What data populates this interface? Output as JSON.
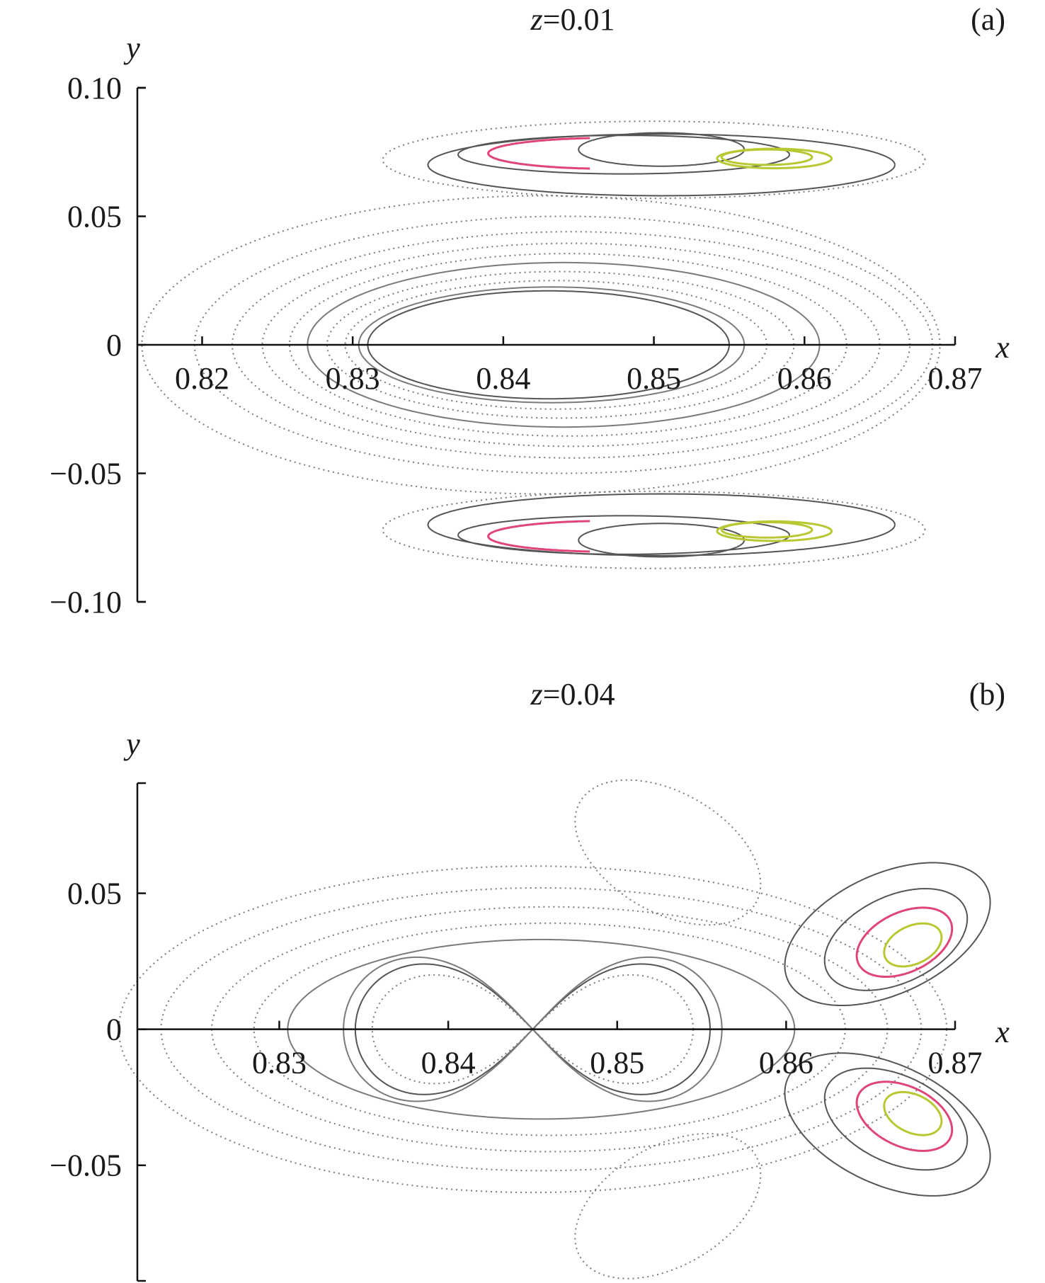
{
  "chart_data": [
    {
      "type": "scatter",
      "title": "z=0.01",
      "title_var": "z",
      "title_value": "=0.01",
      "panel": "(a)",
      "xlabel": "x",
      "ylabel": "y",
      "xlim": [
        0.8157,
        0.87
      ],
      "ylim": [
        -0.1,
        0.1
      ],
      "xticks": [
        "0.82",
        "0.83",
        "0.84",
        "0.85",
        "0.86",
        "0.87"
      ],
      "xtick_values": [
        0.82,
        0.83,
        0.84,
        0.85,
        0.86,
        0.87
      ],
      "yticks": [
        "0.10",
        "0.05",
        "0",
        "−0.05",
        "−0.10"
      ],
      "ytick_values": [
        0.1,
        0.05,
        0,
        -0.05,
        -0.1
      ],
      "grid": false,
      "colors": {
        "gray": "#7a7a7a",
        "dark": "#555555",
        "pink": "#e0457a",
        "yellow": "#b8c832",
        "orange": "#f08a30",
        "red": "#e03030"
      },
      "curves": [
        {
          "shape": "ellipse",
          "cx": 0.843,
          "cy": 0,
          "rx": 0.012,
          "ry": 0.021,
          "color": "dark",
          "style": "solid"
        },
        {
          "shape": "ellipse",
          "cx": 0.8432,
          "cy": 0,
          "rx": 0.0128,
          "ry": 0.0225,
          "color": "gray",
          "style": "solid"
        },
        {
          "shape": "ellipse",
          "cx": 0.8435,
          "cy": 0,
          "rx": 0.014,
          "ry": 0.025,
          "color": "gray",
          "style": "dotted"
        },
        {
          "shape": "ellipse",
          "cx": 0.8438,
          "cy": 0,
          "rx": 0.0155,
          "ry": 0.0285,
          "color": "gray",
          "style": "dotted"
        },
        {
          "shape": "ellipse",
          "cx": 0.844,
          "cy": 0,
          "rx": 0.017,
          "ry": 0.032,
          "color": "gray",
          "style": "solid"
        },
        {
          "shape": "ellipse",
          "cx": 0.8443,
          "cy": 0,
          "rx": 0.0185,
          "ry": 0.0355,
          "color": "gray",
          "style": "dotted"
        },
        {
          "shape": "ellipse",
          "cx": 0.8445,
          "cy": 0,
          "rx": 0.0205,
          "ry": 0.0395,
          "color": "gray",
          "style": "dotted"
        },
        {
          "shape": "ellipse",
          "cx": 0.8445,
          "cy": 0,
          "rx": 0.0225,
          "ry": 0.044,
          "color": "gray",
          "style": "dotted"
        },
        {
          "shape": "ellipse",
          "cx": 0.844,
          "cy": 0,
          "rx": 0.0245,
          "ry": 0.05,
          "color": "gray",
          "style": "dotted"
        },
        {
          "shape": "ellipse",
          "cx": 0.8425,
          "cy": 0,
          "rx": 0.0265,
          "ry": 0.058,
          "color": "gray",
          "style": "dotted"
        },
        {
          "shape": "ellipse",
          "cx": 0.85,
          "cy": 0.072,
          "rx": 0.018,
          "ry": 0.015,
          "color": "gray",
          "style": "dotted"
        },
        {
          "shape": "ellipse",
          "cx": 0.8505,
          "cy": 0.07,
          "rx": 0.0155,
          "ry": 0.012,
          "color": "dark",
          "style": "solid"
        },
        {
          "shape": "ellipse",
          "cx": 0.848,
          "cy": 0.074,
          "rx": 0.011,
          "ry": 0.0075,
          "color": "dark",
          "style": "solid"
        },
        {
          "shape": "ellipse",
          "cx": 0.8505,
          "cy": 0.076,
          "rx": 0.0055,
          "ry": 0.0065,
          "color": "dark",
          "style": "solid"
        },
        {
          "shape": "ellipse",
          "cx": 0.847,
          "cy": 0.0745,
          "rx": 0.008,
          "ry": 0.006,
          "color": "pink",
          "style": "partial"
        },
        {
          "shape": "ellipse",
          "cx": 0.8575,
          "cy": 0.073,
          "rx": 0.003,
          "ry": 0.003,
          "color": "yellow",
          "style": "solid"
        },
        {
          "shape": "ellipse",
          "cx": 0.858,
          "cy": 0.0725,
          "rx": 0.0038,
          "ry": 0.0038,
          "color": "yellow",
          "style": "solid"
        },
        {
          "shape": "ellipse",
          "cx": 0.85,
          "cy": -0.072,
          "rx": 0.018,
          "ry": 0.015,
          "color": "gray",
          "style": "dotted"
        },
        {
          "shape": "ellipse",
          "cx": 0.8505,
          "cy": -0.07,
          "rx": 0.0155,
          "ry": 0.012,
          "color": "dark",
          "style": "solid"
        },
        {
          "shape": "ellipse",
          "cx": 0.848,
          "cy": -0.074,
          "rx": 0.011,
          "ry": 0.0075,
          "color": "dark",
          "style": "solid"
        },
        {
          "shape": "ellipse",
          "cx": 0.8505,
          "cy": -0.076,
          "rx": 0.0055,
          "ry": 0.0065,
          "color": "dark",
          "style": "solid"
        },
        {
          "shape": "ellipse",
          "cx": 0.847,
          "cy": -0.0745,
          "rx": 0.008,
          "ry": 0.006,
          "color": "pink",
          "style": "partial"
        },
        {
          "shape": "ellipse",
          "cx": 0.8575,
          "cy": -0.072,
          "rx": 0.003,
          "ry": 0.003,
          "color": "yellow",
          "style": "solid"
        },
        {
          "shape": "ellipse",
          "cx": 0.858,
          "cy": -0.0725,
          "rx": 0.0038,
          "ry": 0.0038,
          "color": "yellow",
          "style": "solid"
        }
      ]
    },
    {
      "type": "scatter",
      "title": "z=0.04",
      "title_var": "z",
      "title_value": "=0.04",
      "panel": "(b)",
      "xlabel": "x",
      "ylabel": "y",
      "xlim": [
        0.8216,
        0.87
      ],
      "ylim": [
        -0.0925,
        0.0905
      ],
      "xticks": [
        "0.83",
        "0.84",
        "0.85",
        "0.86",
        "0.87"
      ],
      "xtick_values": [
        0.83,
        0.84,
        0.85,
        0.86,
        0.87
      ],
      "yticks": [
        "0.05",
        "0",
        "−0.05"
      ],
      "ytick_values": [
        0.05,
        0,
        -0.05
      ],
      "grid": false,
      "colors": {
        "gray": "#7a7a7a",
        "dark": "#555555",
        "pink": "#e0457a",
        "yellow": "#b8c832",
        "orange": "#f08a30",
        "red": "#e03030"
      },
      "curves": [
        {
          "shape": "lemniscate",
          "cx": 0.845,
          "cy": 0,
          "rx": 0.0105,
          "ry": 0.024,
          "color": "dark",
          "style": "solid"
        },
        {
          "shape": "lemniscate",
          "cx": 0.845,
          "cy": 0,
          "rx": 0.0112,
          "ry": 0.0265,
          "color": "gray",
          "style": "solid"
        },
        {
          "shape": "lemniscate",
          "cx": 0.845,
          "cy": 0,
          "rx": 0.0095,
          "ry": 0.02,
          "color": "gray",
          "style": "dotted"
        },
        {
          "shape": "ellipse",
          "cx": 0.8455,
          "cy": 0,
          "rx": 0.015,
          "ry": 0.033,
          "color": "gray",
          "style": "solid"
        },
        {
          "shape": "ellipse",
          "cx": 0.846,
          "cy": 0,
          "rx": 0.0175,
          "ry": 0.039,
          "color": "gray",
          "style": "dotted"
        },
        {
          "shape": "ellipse",
          "cx": 0.846,
          "cy": 0,
          "rx": 0.02,
          "ry": 0.045,
          "color": "gray",
          "style": "dotted"
        },
        {
          "shape": "ellipse",
          "cx": 0.8455,
          "cy": 0,
          "rx": 0.0225,
          "ry": 0.052,
          "color": "gray",
          "style": "dotted"
        },
        {
          "shape": "ellipse",
          "cx": 0.845,
          "cy": 0,
          "rx": 0.0245,
          "ry": 0.06,
          "color": "gray",
          "style": "dotted"
        },
        {
          "shape": "ellipse",
          "cx": 0.866,
          "cy": 0.035,
          "rx": 0.0065,
          "ry": 0.022,
          "color": "dark",
          "style": "solid",
          "tilt": -25
        },
        {
          "shape": "ellipse",
          "cx": 0.8665,
          "cy": 0.033,
          "rx": 0.0045,
          "ry": 0.016,
          "color": "dark",
          "style": "solid",
          "tilt": -25
        },
        {
          "shape": "ellipse",
          "cx": 0.867,
          "cy": 0.032,
          "rx": 0.003,
          "ry": 0.011,
          "color": "pink",
          "style": "solid",
          "tilt": -25
        },
        {
          "shape": "ellipse",
          "cx": 0.8675,
          "cy": 0.031,
          "rx": 0.0018,
          "ry": 0.007,
          "color": "yellow",
          "style": "solid",
          "tilt": -25
        },
        {
          "shape": "ellipse",
          "cx": 0.866,
          "cy": -0.035,
          "rx": 0.0065,
          "ry": 0.022,
          "color": "dark",
          "style": "solid",
          "tilt": 25
        },
        {
          "shape": "ellipse",
          "cx": 0.8665,
          "cy": -0.033,
          "rx": 0.0045,
          "ry": 0.016,
          "color": "dark",
          "style": "solid",
          "tilt": 25
        },
        {
          "shape": "ellipse",
          "cx": 0.867,
          "cy": -0.032,
          "rx": 0.003,
          "ry": 0.011,
          "color": "pink",
          "style": "solid",
          "tilt": 25
        },
        {
          "shape": "ellipse",
          "cx": 0.8675,
          "cy": -0.031,
          "rx": 0.0018,
          "ry": 0.007,
          "color": "yellow",
          "style": "solid",
          "tilt": 25
        },
        {
          "shape": "ellipse",
          "cx": 0.853,
          "cy": 0.065,
          "rx": 0.006,
          "ry": 0.022,
          "color": "gray",
          "style": "dotted",
          "tilt": 30
        },
        {
          "shape": "ellipse",
          "cx": 0.853,
          "cy": -0.065,
          "rx": 0.006,
          "ry": 0.022,
          "color": "gray",
          "style": "dotted",
          "tilt": -30
        }
      ]
    }
  ]
}
